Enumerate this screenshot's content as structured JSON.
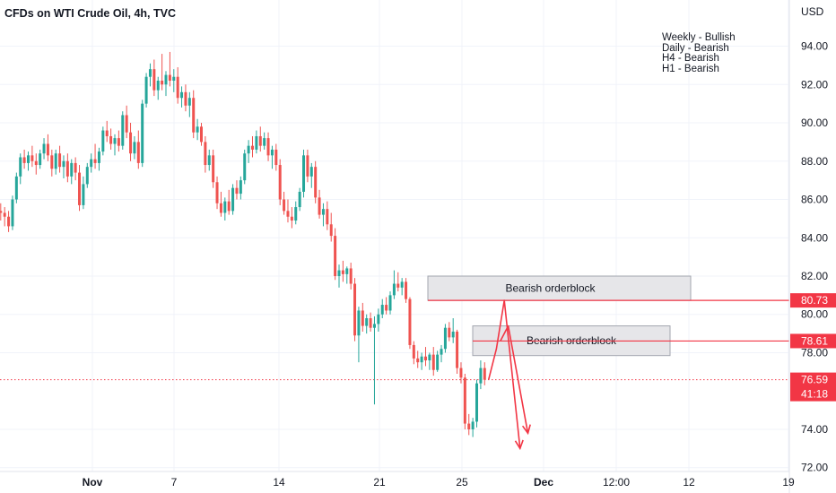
{
  "chart_data": {
    "type": "candlestick",
    "title": "CFDs on WTI Crude Oil, 4h, TVC",
    "currency": "USD",
    "notes": [
      "Weekly - Bullish",
      "Daily - Bearish",
      "H4 - Bearish",
      "H1 - Bearish"
    ],
    "ylim": [
      71.8,
      96.2
    ],
    "yticks": [
      "94.00",
      "92.00",
      "90.00",
      "88.00",
      "86.00",
      "84.00",
      "82.00",
      "80.00",
      "78.00",
      "74.00",
      "72.00"
    ],
    "xticks": [
      {
        "label": "Nov",
        "bold": true
      },
      {
        "label": "7",
        "bold": false
      },
      {
        "label": "14",
        "bold": false
      },
      {
        "label": "21",
        "bold": false
      },
      {
        "label": "25",
        "bold": false
      },
      {
        "label": "Dec",
        "bold": true
      },
      {
        "label": "12:00",
        "bold": false
      },
      {
        "label": "12",
        "bold": false
      },
      {
        "label": "19",
        "bold": false
      }
    ],
    "ohlc": [
      [
        85.4,
        85.8,
        84.9,
        85.3
      ],
      [
        85.3,
        85.6,
        84.6,
        85.1
      ],
      [
        85.1,
        85.4,
        84.3,
        84.6
      ],
      [
        84.6,
        86.2,
        84.4,
        86.0
      ],
      [
        86.0,
        87.4,
        85.8,
        87.2
      ],
      [
        87.2,
        88.4,
        86.8,
        88.2
      ],
      [
        88.2,
        88.6,
        87.6,
        87.9
      ],
      [
        87.9,
        88.5,
        87.5,
        88.3
      ],
      [
        88.3,
        88.8,
        87.7,
        88.0
      ],
      [
        88.0,
        88.4,
        87.3,
        87.8
      ],
      [
        87.8,
        88.6,
        87.6,
        88.4
      ],
      [
        88.4,
        89.2,
        88.1,
        88.9
      ],
      [
        88.9,
        89.4,
        88.0,
        88.3
      ],
      [
        88.3,
        88.6,
        87.2,
        87.6
      ],
      [
        87.6,
        88.6,
        87.3,
        88.4
      ],
      [
        88.4,
        88.8,
        87.4,
        87.7
      ],
      [
        87.7,
        88.3,
        87.1,
        88.0
      ],
      [
        88.0,
        88.4,
        86.9,
        87.2
      ],
      [
        87.2,
        88.1,
        86.8,
        87.9
      ],
      [
        87.9,
        88.2,
        87.0,
        87.4
      ],
      [
        87.4,
        87.8,
        85.4,
        85.7
      ],
      [
        85.7,
        87.2,
        85.5,
        86.8
      ],
      [
        86.8,
        87.9,
        86.6,
        87.7
      ],
      [
        87.7,
        88.4,
        87.4,
        88.1
      ],
      [
        88.1,
        88.9,
        87.6,
        87.9
      ],
      [
        87.9,
        88.7,
        87.5,
        88.5
      ],
      [
        88.5,
        89.8,
        88.3,
        89.6
      ],
      [
        89.6,
        90.1,
        89.0,
        89.3
      ],
      [
        89.3,
        89.7,
        88.6,
        88.9
      ],
      [
        88.9,
        89.4,
        88.3,
        89.2
      ],
      [
        89.2,
        89.6,
        88.5,
        88.8
      ],
      [
        88.8,
        90.6,
        88.6,
        90.4
      ],
      [
        90.4,
        90.9,
        89.2,
        89.5
      ],
      [
        89.5,
        90.0,
        88.0,
        88.4
      ],
      [
        88.4,
        89.3,
        88.1,
        89.0
      ],
      [
        89.0,
        89.6,
        87.6,
        87.9
      ],
      [
        87.9,
        91.2,
        87.7,
        91.0
      ],
      [
        91.0,
        92.6,
        90.8,
        92.4
      ],
      [
        92.4,
        93.1,
        91.9,
        92.8
      ],
      [
        92.8,
        93.3,
        91.4,
        91.7
      ],
      [
        91.7,
        92.4,
        91.2,
        92.2
      ],
      [
        92.2,
        93.6,
        91.7,
        92.0
      ],
      [
        92.0,
        92.7,
        91.4,
        92.5
      ],
      [
        92.5,
        93.7,
        91.9,
        92.2
      ],
      [
        92.2,
        92.8,
        91.6,
        92.4
      ],
      [
        92.4,
        92.9,
        91.0,
        91.3
      ],
      [
        91.3,
        91.9,
        90.8,
        91.6
      ],
      [
        91.6,
        92.0,
        90.6,
        90.9
      ],
      [
        90.9,
        91.6,
        90.3,
        91.3
      ],
      [
        91.3,
        91.7,
        89.2,
        89.5
      ],
      [
        89.5,
        90.2,
        89.1,
        89.8
      ],
      [
        89.8,
        90.0,
        88.8,
        89.0
      ],
      [
        89.0,
        89.3,
        87.4,
        87.8
      ],
      [
        87.8,
        88.6,
        87.5,
        88.3
      ],
      [
        88.3,
        88.6,
        86.6,
        86.9
      ],
      [
        86.9,
        87.2,
        85.5,
        85.8
      ],
      [
        85.8,
        86.4,
        85.1,
        85.3
      ],
      [
        85.3,
        86.1,
        84.9,
        85.9
      ],
      [
        85.9,
        86.5,
        85.2,
        85.4
      ],
      [
        85.4,
        86.8,
        85.2,
        86.6
      ],
      [
        86.6,
        87.0,
        86.0,
        86.3
      ],
      [
        86.3,
        87.2,
        86.0,
        87.0
      ],
      [
        87.0,
        88.6,
        86.8,
        88.4
      ],
      [
        88.4,
        89.1,
        87.9,
        88.8
      ],
      [
        88.8,
        89.3,
        88.2,
        88.6
      ],
      [
        88.6,
        89.6,
        88.4,
        89.3
      ],
      [
        89.3,
        89.8,
        88.5,
        88.8
      ],
      [
        88.8,
        89.5,
        88.6,
        89.2
      ],
      [
        89.2,
        89.5,
        88.0,
        88.3
      ],
      [
        88.3,
        88.8,
        87.6,
        88.6
      ],
      [
        88.6,
        88.9,
        87.5,
        87.8
      ],
      [
        87.8,
        88.1,
        85.7,
        86.0
      ],
      [
        86.0,
        86.4,
        85.2,
        85.4
      ],
      [
        85.4,
        86.0,
        84.8,
        85.1
      ],
      [
        85.1,
        85.6,
        84.5,
        84.9
      ],
      [
        84.9,
        85.9,
        84.7,
        85.6
      ],
      [
        85.6,
        86.6,
        85.4,
        86.4
      ],
      [
        86.4,
        88.6,
        86.1,
        88.3
      ],
      [
        88.3,
        88.6,
        86.9,
        87.2
      ],
      [
        87.2,
        87.9,
        86.6,
        87.7
      ],
      [
        87.7,
        88.0,
        85.8,
        86.1
      ],
      [
        86.1,
        86.5,
        85.0,
        85.2
      ],
      [
        85.2,
        85.8,
        84.6,
        85.5
      ],
      [
        85.5,
        85.9,
        84.4,
        84.7
      ],
      [
        84.7,
        85.3,
        83.8,
        84.1
      ],
      [
        84.1,
        84.5,
        81.8,
        82.0
      ],
      [
        82.0,
        82.6,
        81.4,
        82.3
      ],
      [
        82.3,
        82.8,
        81.7,
        82.1
      ],
      [
        82.1,
        82.5,
        81.6,
        82.4
      ],
      [
        82.4,
        82.7,
        81.3,
        81.6
      ],
      [
        81.6,
        81.9,
        78.6,
        78.9
      ],
      [
        78.9,
        80.4,
        77.5,
        80.2
      ],
      [
        80.2,
        80.6,
        79.1,
        79.4
      ],
      [
        79.4,
        80.0,
        79.0,
        79.8
      ],
      [
        79.8,
        80.1,
        79.1,
        79.3
      ],
      [
        79.3,
        79.9,
        75.3,
        79.5
      ],
      [
        79.5,
        80.3,
        79.1,
        80.0
      ],
      [
        80.0,
        80.8,
        79.8,
        80.5
      ],
      [
        80.5,
        80.9,
        80.0,
        80.2
      ],
      [
        80.2,
        81.2,
        80.0,
        81.0
      ],
      [
        81.0,
        82.3,
        80.8,
        81.6
      ],
      [
        81.6,
        82.2,
        81.2,
        81.4
      ],
      [
        81.4,
        81.9,
        81.0,
        81.7
      ],
      [
        81.7,
        81.9,
        80.6,
        80.8
      ],
      [
        80.8,
        80.9,
        78.2,
        78.4
      ],
      [
        78.4,
        78.6,
        77.4,
        77.7
      ],
      [
        77.7,
        78.1,
        77.2,
        77.5
      ],
      [
        77.5,
        78.0,
        77.1,
        77.8
      ],
      [
        77.8,
        78.3,
        77.3,
        77.6
      ],
      [
        77.6,
        78.0,
        77.1,
        77.9
      ],
      [
        77.9,
        78.3,
        76.8,
        77.1
      ],
      [
        77.1,
        78.1,
        77.0,
        77.9
      ],
      [
        77.9,
        78.4,
        77.5,
        78.2
      ],
      [
        78.2,
        79.5,
        78.0,
        79.3
      ],
      [
        79.3,
        79.6,
        78.6,
        78.8
      ],
      [
        78.8,
        79.8,
        78.5,
        79.1
      ],
      [
        79.1,
        79.2,
        76.9,
        77.2
      ],
      [
        77.2,
        77.5,
        76.4,
        76.7
      ],
      [
        76.7,
        76.9,
        74.0,
        74.3
      ],
      [
        74.3,
        74.8,
        73.7,
        74.0
      ],
      [
        74.0,
        74.6,
        73.6,
        74.4
      ],
      [
        74.4,
        76.6,
        74.1,
        76.4
      ],
      [
        76.4,
        77.6,
        76.1,
        77.2
      ],
      [
        77.2,
        77.5,
        76.3,
        76.59
      ]
    ],
    "orderblocks": [
      {
        "label": "Bearish orderblock",
        "top": 82.0,
        "bottom": 80.73
      },
      {
        "label": "Bearish orderblock",
        "top": 79.4,
        "bottom": 77.85
      }
    ],
    "levels": [
      {
        "label": "80.73",
        "value": 80.73,
        "color": "#f23645"
      },
      {
        "label": "78.61",
        "value": 78.61,
        "color": "#f23645"
      }
    ],
    "last_price": {
      "label": "76.59",
      "countdown": "41:18",
      "value": 76.59,
      "color": "#f23645"
    },
    "projection_path": [
      {
        "candle": 124,
        "price": 76.59
      },
      {
        "candle": 126,
        "price": 78.2
      },
      {
        "candle": 128,
        "price": 80.73
      },
      {
        "candle": 132,
        "price": 73.0
      }
    ],
    "projection_path_2": [
      {
        "candle": 127,
        "price": 78.61
      },
      {
        "candle": 129,
        "price": 79.4
      },
      {
        "candle": 134,
        "price": 73.8
      }
    ],
    "colors": {
      "up": "#26a69a",
      "down": "#ef5350",
      "grid": "#f0f3fa",
      "axis_text": "#131722",
      "orderblock_fill": "#e6e6e9",
      "orderblock_stroke": "#a3a6af",
      "arrow": "#f23645"
    }
  }
}
